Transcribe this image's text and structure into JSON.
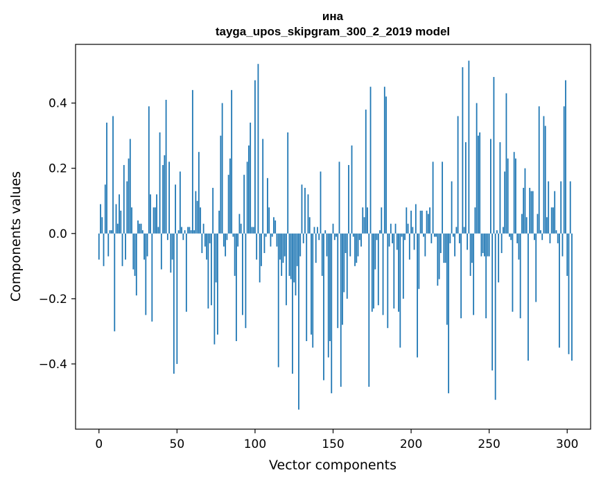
{
  "chart_data": {
    "type": "bar",
    "title_line1": "ина",
    "title_line2": "tayga_upos_skipgram_300_2_2019 model",
    "xlabel": "Vector components",
    "ylabel": "Components values",
    "xlim": [
      -15,
      315
    ],
    "ylim": [
      -0.6,
      0.58
    ],
    "xticks": [
      0,
      50,
      100,
      150,
      200,
      250,
      300
    ],
    "xtick_labels": [
      "0",
      "50",
      "100",
      "150",
      "200",
      "250",
      "300"
    ],
    "yticks": [
      -0.4,
      -0.2,
      0.0,
      0.2,
      0.4
    ],
    "ytick_labels": [
      "−0.4",
      "−0.2",
      "0.0",
      "0.2",
      "0.4"
    ],
    "grid": false,
    "bar_color": "#1f77b4",
    "values": [
      -0.08,
      0.09,
      0.05,
      -0.1,
      0.15,
      0.34,
      -0.07,
      0.01,
      0.01,
      0.36,
      -0.3,
      0.09,
      0.03,
      0.12,
      0.07,
      -0.1,
      0.21,
      -0.08,
      0.16,
      0.23,
      0.29,
      0.08,
      -0.11,
      -0.13,
      -0.19,
      0.04,
      0.03,
      0.03,
      0.01,
      -0.08,
      -0.25,
      -0.07,
      0.39,
      0.12,
      -0.27,
      0.08,
      0.08,
      0.12,
      0.02,
      0.31,
      -0.11,
      0.21,
      0.24,
      0.41,
      -0.02,
      0.22,
      -0.12,
      -0.08,
      -0.43,
      0.15,
      -0.4,
      0.01,
      0.19,
      0.02,
      -0.02,
      0.01,
      -0.24,
      0.02,
      0.02,
      0.01,
      0.44,
      0.01,
      0.13,
      0.1,
      0.25,
      0.08,
      -0.06,
      0.03,
      -0.04,
      -0.08,
      -0.23,
      -0.03,
      -0.22,
      0.14,
      -0.34,
      -0.15,
      -0.31,
      0.07,
      0.3,
      0.4,
      -0.04,
      -0.07,
      -0.02,
      0.18,
      0.23,
      0.44,
      -0.01,
      -0.13,
      -0.33,
      -0.04,
      0.06,
      0.03,
      -0.25,
      0.18,
      -0.29,
      0.22,
      0.27,
      0.34,
      0.02,
      0.02,
      0.47,
      -0.08,
      0.52,
      -0.15,
      -0.1,
      0.29,
      -0.06,
      -0.01,
      0.17,
      0.08,
      -0.04,
      -0.01,
      0.05,
      0.04,
      -0.04,
      -0.41,
      -0.08,
      -0.13,
      -0.09,
      -0.07,
      -0.22,
      0.31,
      -0.13,
      -0.14,
      -0.43,
      -0.15,
      -0.19,
      -0.1,
      -0.54,
      -0.07,
      0.15,
      -0.03,
      0.14,
      -0.33,
      0.12,
      0.05,
      -0.31,
      -0.35,
      0.02,
      -0.09,
      0.02,
      -0.02,
      0.19,
      -0.13,
      -0.45,
      0.01,
      -0.07,
      -0.38,
      -0.33,
      -0.49,
      0.03,
      -0.02,
      -0.01,
      -0.29,
      0.22,
      -0.47,
      -0.28,
      -0.18,
      -0.06,
      -0.2,
      0.21,
      -0.07,
      0.27,
      -0.01,
      -0.1,
      -0.09,
      -0.07,
      -0.02,
      -0.04,
      0.08,
      0.05,
      0.38,
      0.08,
      -0.47,
      0.45,
      -0.24,
      -0.23,
      -0.11,
      -0.02,
      -0.22,
      0.01,
      0.08,
      -0.25,
      0.45,
      0.42,
      -0.29,
      -0.04,
      0.03,
      -0.03,
      -0.23,
      0.03,
      -0.05,
      -0.24,
      -0.35,
      -0.01,
      -0.2,
      -0.02,
      0.08,
      0.03,
      -0.08,
      0.07,
      0.02,
      -0.05,
      0.09,
      -0.38,
      -0.17,
      0.07,
      0.07,
      -0.01,
      -0.07,
      0.07,
      0.06,
      0.08,
      -0.03,
      0.22,
      -0.01,
      -0.01,
      -0.16,
      -0.14,
      -0.06,
      0.22,
      -0.09,
      -0.09,
      -0.28,
      -0.49,
      -0.03,
      0.16,
      -0.01,
      -0.07,
      0.02,
      0.36,
      -0.03,
      -0.26,
      0.51,
      0.02,
      0.28,
      -0.05,
      0.53,
      -0.13,
      -0.09,
      -0.25,
      0.08,
      0.4,
      0.3,
      0.31,
      -0.07,
      -0.06,
      -0.07,
      -0.26,
      -0.07,
      -0.07,
      0.29,
      -0.42,
      0.48,
      -0.51,
      0.01,
      -0.15,
      0.28,
      -0.06,
      0.02,
      0.19,
      0.43,
      0.23,
      -0.01,
      -0.02,
      -0.24,
      0.25,
      0.23,
      -0.03,
      -0.08,
      -0.26,
      0.06,
      0.14,
      0.2,
      0.05,
      -0.39,
      0.14,
      0.13,
      0.13,
      -0.02,
      -0.21,
      0.06,
      0.39,
      0.01,
      -0.02,
      0.36,
      0.33,
      0.05,
      0.16,
      -0.03,
      0.08,
      0.08,
      0.13,
      0.01,
      -0.03,
      -0.35,
      0.16,
      -0.07,
      0.39,
      0.47,
      -0.13,
      -0.37,
      0.16,
      -0.39
    ]
  }
}
